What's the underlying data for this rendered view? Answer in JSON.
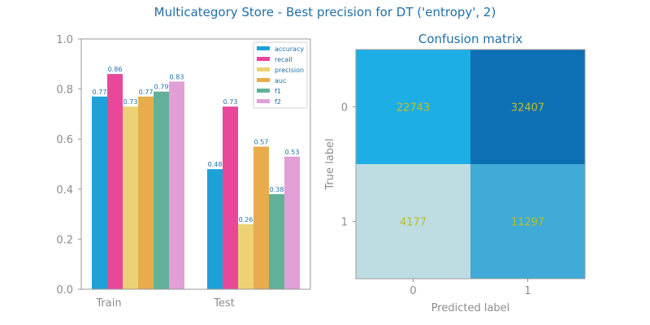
{
  "figure": {
    "suptitle": "Multicategory Store - Best precision for DT ('entropy', 2)"
  },
  "colors": {
    "title": "#1f6fa8",
    "tick": "#8c8c8c",
    "cell_text": "#bdbd22"
  },
  "chart_data": [
    {
      "type": "bar",
      "title": "",
      "xlabel": "",
      "ylabel": "",
      "categories": [
        "Train",
        "Test"
      ],
      "ylim": [
        0,
        1.0
      ],
      "yticks": [
        "0.0",
        "0.2",
        "0.4",
        "0.6",
        "0.8",
        "1.0"
      ],
      "legend_position": "top-right",
      "series": [
        {
          "name": "accuracy",
          "color": "#1ea1d9",
          "values": [
            0.77,
            0.48
          ],
          "labels": [
            "0.77",
            "0.48"
          ]
        },
        {
          "name": "recall",
          "color": "#e8479a",
          "values": [
            0.86,
            0.73
          ],
          "labels": [
            "0.86",
            "0.73"
          ]
        },
        {
          "name": "precision",
          "color": "#ecd275",
          "values": [
            0.73,
            0.26
          ],
          "labels": [
            "0.73",
            "0.26"
          ]
        },
        {
          "name": "auc",
          "color": "#e8ac4c",
          "values": [
            0.77,
            0.57
          ],
          "labels": [
            "0.77",
            "0.57"
          ]
        },
        {
          "name": "f1",
          "color": "#63b09a",
          "values": [
            0.79,
            0.38
          ],
          "labels": [
            "0.79",
            "0.38"
          ]
        },
        {
          "name": "f2",
          "color": "#e0a0d5",
          "values": [
            0.83,
            0.53
          ],
          "labels": [
            "0.83",
            "0.53"
          ]
        }
      ]
    },
    {
      "type": "heatmap",
      "title": "Confusion matrix",
      "xlabel": "Predicted label",
      "ylabel": "True label",
      "x_ticks": [
        "0",
        "1"
      ],
      "y_ticks": [
        "0",
        "1"
      ],
      "matrix": [
        [
          22743,
          32407
        ],
        [
          4177,
          11297
        ]
      ],
      "cell_labels": [
        [
          "22743",
          "32407"
        ],
        [
          "4177",
          "11297"
        ]
      ],
      "cell_colors": [
        [
          "#1eaee6",
          "#0d70b5"
        ],
        [
          "#bedde2",
          "#3fabd6"
        ]
      ]
    }
  ]
}
